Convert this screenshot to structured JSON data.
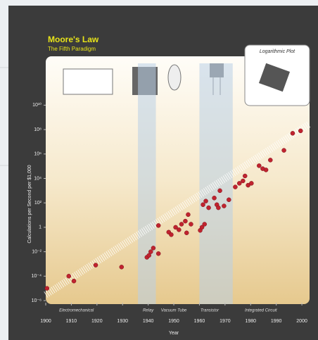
{
  "chart_data": {
    "type": "scatter",
    "title": "Moore's Law",
    "subtitle": "The Fifth Paradigm",
    "legend_text": "Logarithmic Plot",
    "x_label": "Year",
    "y_label": "Calculations per Second per $1,000",
    "log_y": true,
    "color": "#c0232f",
    "x": [
      1900.5,
      1909,
      1911,
      1919.5,
      1929.6,
      1939.5,
      1940.3,
      1941,
      1942,
      1944,
      1944,
      1948,
      1949,
      1950.7,
      1952,
      1953,
      1954.5,
      1955,
      1955.6,
      1956.7,
      1960.3,
      1961,
      1962,
      1961.4,
      1962.5,
      1963.6,
      1965.8,
      1966.8,
      1968,
      1967.4,
      1969.6,
      1971.5,
      1974,
      1975.6,
      1977,
      1977.8,
      1979,
      1980.3,
      1983.3,
      1984.7,
      1986,
      1987.7,
      1993,
      1996.4,
      1999.5
    ],
    "values": [
      1e-05,
      0.0001,
      4e-05,
      0.0008,
      0.00056,
      0.0035,
      0.005,
      0.01,
      0.02,
      0.007,
      1.4,
      0.4,
      0.25,
      1,
      0.63,
      1.8,
      3.2,
      0.35,
      11,
      1.8,
      0.56,
      1,
      1.8,
      71,
      140,
      40,
      250,
      71,
      1000,
      40,
      56,
      180,
      2000,
      4000,
      6300,
      16000,
      2800,
      4000,
      110000,
      63000,
      50000,
      320000,
      2000000,
      50000000,
      79000000
    ],
    "trend": {
      "x": [
        1900,
        2003
      ],
      "y": [
        3e-06,
        300000000.0
      ]
    },
    "bands": [
      [
        1936,
        1943
      ],
      [
        1960,
        1973
      ]
    ],
    "eras": [
      {
        "label": "Electromechanical",
        "x": 1912
      },
      {
        "label": "Relay",
        "x": 1940
      },
      {
        "label": "Vacuum Tube",
        "x": 1950
      },
      {
        "label": "Transistor",
        "x": 1964
      },
      {
        "label": "Integrated Circuit",
        "x": 1984
      }
    ],
    "xlim": [
      1900,
      2003
    ],
    "xticks": [
      1900,
      1910,
      1920,
      1930,
      1940,
      1950,
      1960,
      1970,
      1980,
      1990,
      2000
    ],
    "ylim": [
      1e-06,
      100000000000000.0
    ],
    "yticks": [
      {
        "value": 1e-06,
        "label": "10⁻⁶"
      },
      {
        "value": 0.0001,
        "label": "10⁻⁴"
      },
      {
        "value": 0.01,
        "label": "10⁻²"
      },
      1,
      {
        "value": 100,
        "label": "10²"
      },
      {
        "value": 10000,
        "label": "10⁴"
      },
      {
        "value": 1000000,
        "label": "10⁶"
      },
      {
        "value": 100000000,
        "label": "10⁸"
      },
      {
        "value": 10000000000,
        "label": "10¹⁰"
      }
    ]
  }
}
